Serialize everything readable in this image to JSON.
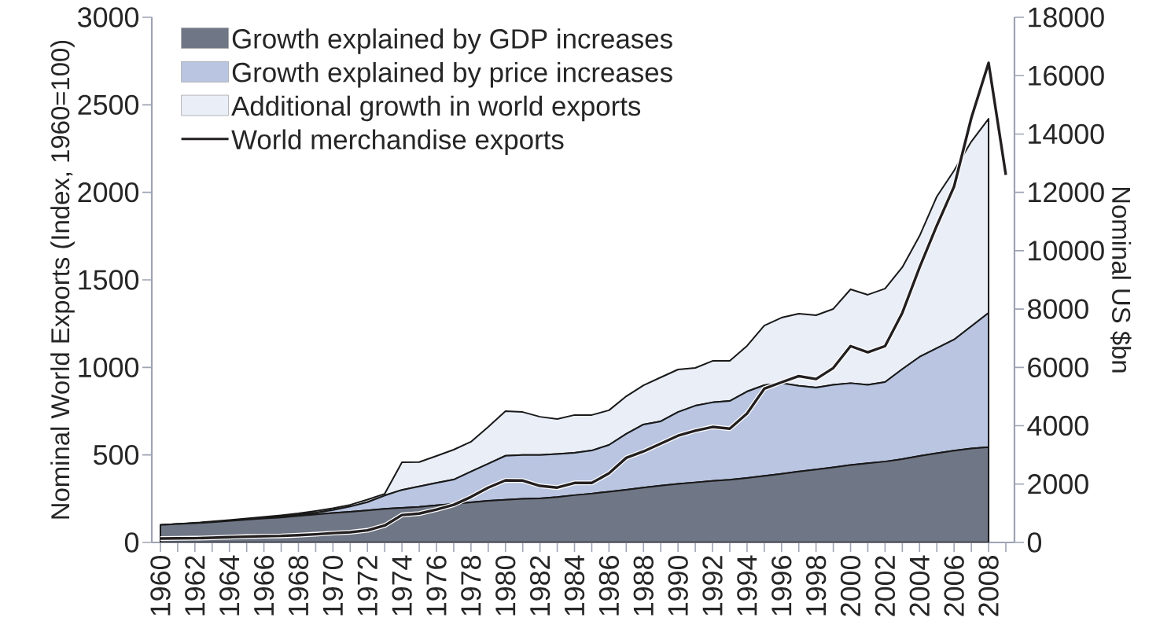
{
  "chart_data": {
    "type": "area",
    "stacked": true,
    "ylabel": "Nominal World Exports (Index, 1960=100)",
    "y2label": "Nominal US $bn",
    "legend": "top left",
    "x": [
      1960,
      1961,
      1962,
      1963,
      1964,
      1965,
      1966,
      1967,
      1968,
      1969,
      1970,
      1971,
      1972,
      1973,
      1974,
      1975,
      1976,
      1977,
      1978,
      1979,
      1980,
      1981,
      1982,
      1983,
      1984,
      1985,
      1986,
      1987,
      1988,
      1989,
      1990,
      1991,
      1992,
      1993,
      1994,
      1995,
      1996,
      1997,
      1998,
      1999,
      2000,
      2001,
      2002,
      2003,
      2004,
      2005,
      2006,
      2007,
      2008
    ],
    "xlim": [
      1959.5,
      2009.5
    ],
    "xticks": [
      1960,
      {
        "value": 1961,
        "label": null
      },
      1962,
      {
        "value": 1963,
        "label": null
      },
      1964,
      {
        "value": 1965,
        "label": null
      },
      1966,
      {
        "value": 1967,
        "label": null
      },
      1968,
      {
        "value": 1969,
        "label": null
      },
      1970,
      {
        "value": 1971,
        "label": null
      },
      1972,
      {
        "value": 1973,
        "label": null
      },
      1974,
      {
        "value": 1975,
        "label": null
      },
      1976,
      {
        "value": 1977,
        "label": null
      },
      1978,
      {
        "value": 1979,
        "label": null
      },
      1980,
      {
        "value": 1981,
        "label": null
      },
      1982,
      {
        "value": 1983,
        "label": null
      },
      1984,
      {
        "value": 1985,
        "label": null
      },
      1986,
      {
        "value": 1987,
        "label": null
      },
      1988,
      {
        "value": 1989,
        "label": null
      },
      1990,
      {
        "value": 1991,
        "label": null
      },
      1992,
      {
        "value": 1993,
        "label": null
      },
      1994,
      {
        "value": 1995,
        "label": null
      },
      1996,
      {
        "value": 1997,
        "label": null
      },
      1998,
      {
        "value": 1999,
        "label": null
      },
      2000,
      {
        "value": 2001,
        "label": null
      },
      2002,
      {
        "value": 2003,
        "label": null
      },
      2004,
      {
        "value": 2005,
        "label": null
      },
      2006,
      {
        "value": 2007,
        "label": null
      },
      2008,
      {
        "value": 2009,
        "label": null
      }
    ],
    "ylim": [
      0,
      3000
    ],
    "yticks": [
      0,
      500,
      1000,
      1500,
      2000,
      2500,
      3000
    ],
    "y2lim": [
      0,
      18000
    ],
    "y2ticks": [
      0,
      2000,
      4000,
      6000,
      8000,
      10000,
      12000,
      14000,
      16000,
      18000
    ],
    "series": [
      {
        "name": "Growth explained by GDP increases",
        "color": "#6f7685",
        "values": [
          100,
          105,
          110,
          116,
          123,
          130,
          137,
          143,
          152,
          160,
          168,
          175,
          183,
          192,
          198,
          203,
          212,
          220,
          229,
          238,
          244,
          249,
          252,
          259,
          270,
          279,
          290,
          301,
          313,
          325,
          335,
          343,
          351,
          358,
          368,
          380,
          392,
          405,
          417,
          429,
          442,
          452,
          462,
          476,
          494,
          510,
          524,
          537,
          545
        ]
      },
      {
        "name": "Growth explained by price increases",
        "color": "#b9c5e1",
        "values": [
          0,
          0,
          0,
          1,
          2,
          3,
          4,
          5,
          6,
          10,
          17,
          30,
          47,
          76,
          102,
          117,
          128,
          139,
          176,
          212,
          251,
          251,
          248,
          246,
          242,
          246,
          267,
          319,
          361,
          367,
          410,
          438,
          449,
          450,
          494,
          518,
          518,
          490,
          468,
          471,
          468,
          448,
          454,
          514,
          566,
          600,
          635,
          698,
          766
        ]
      },
      {
        "name": "Additional growth in world exports",
        "color": "#eaeef7",
        "values": [
          0,
          1,
          2,
          3,
          3,
          4,
          5,
          7,
          8,
          10,
          10,
          10,
          15,
          10,
          158,
          139,
          154,
          171,
          170,
          210,
          255,
          245,
          218,
          200,
          216,
          203,
          198,
          215,
          224,
          251,
          243,
          216,
          237,
          229,
          261,
          341,
          374,
          412,
          413,
          434,
          536,
          515,
          534,
          582,
          691,
          866,
          965,
          1055,
          1109
        ]
      },
      {
        "name": "World merchandise exports",
        "type": "line",
        "axis": "y2",
        "color": "#231f20",
        "x": [
          1960,
          1961,
          1962,
          1963,
          1964,
          1965,
          1966,
          1967,
          1968,
          1969,
          1970,
          1971,
          1972,
          1973,
          1974,
          1975,
          1976,
          1977,
          1978,
          1979,
          1980,
          1981,
          1982,
          1983,
          1984,
          1985,
          1986,
          1987,
          1988,
          1989,
          1990,
          1991,
          1992,
          1993,
          1994,
          1995,
          1996,
          1997,
          1998,
          1999,
          2000,
          2001,
          2002,
          2003,
          2004,
          2005,
          2006,
          2007,
          2008,
          2009
        ],
        "values": [
          135,
          140,
          145,
          160,
          180,
          200,
          215,
          225,
          250,
          280,
          320,
          350,
          415,
          580,
          940,
          990,
          1130,
          1290,
          1560,
          1880,
          2130,
          2120,
          1940,
          1880,
          2040,
          2040,
          2370,
          2900,
          3120,
          3390,
          3660,
          3830,
          3960,
          3900,
          4420,
          5270,
          5490,
          5700,
          5600,
          5980,
          6730,
          6520,
          6730,
          7870,
          9430,
          10860,
          12200,
          14550,
          16440,
          12600
        ]
      }
    ]
  }
}
